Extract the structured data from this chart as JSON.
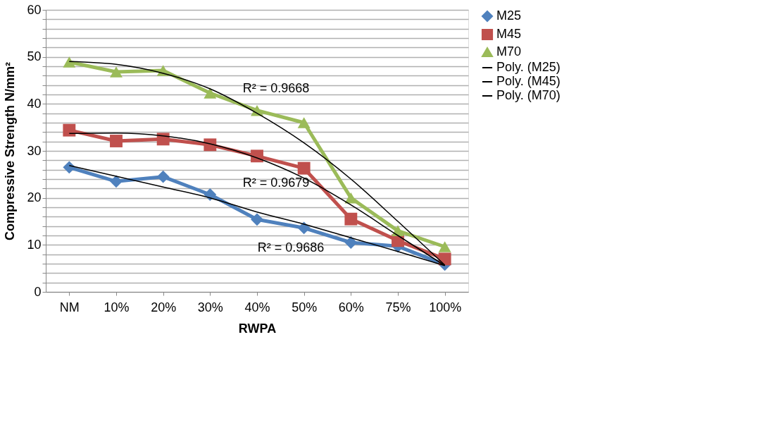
{
  "chart_data": {
    "type": "line",
    "xlabel": "RWPA",
    "ylabel": "Compressive Strength N/mm²",
    "categories": [
      "NM",
      "10%",
      "20%",
      "30%",
      "40%",
      "50%",
      "60%",
      "75%",
      "100%"
    ],
    "series": [
      {
        "name": "M25",
        "color": "#4f81bd",
        "marker": "diamond",
        "values": [
          26.5,
          23.5,
          24.5,
          20.7,
          15.4,
          13.6,
          10.5,
          9.7,
          5.8
        ]
      },
      {
        "name": "M45",
        "color": "#c0504d",
        "marker": "square",
        "values": [
          34.4,
          32.1,
          32.5,
          31.3,
          28.9,
          26.3,
          15.5,
          10.9,
          7.0
        ]
      },
      {
        "name": "M70",
        "color": "#9bbb59",
        "marker": "triangle",
        "values": [
          48.9,
          46.8,
          47.1,
          42.3,
          38.6,
          36.0,
          20.0,
          13.0,
          9.6
        ]
      },
      {
        "name": "Poly. (M25)",
        "color": "#000000",
        "marker": "none",
        "values": [
          26.9,
          24.6,
          22.3,
          20.0,
          17.0,
          14.4,
          11.5,
          8.6,
          5.6
        ]
      },
      {
        "name": "Poly. (M45)",
        "color": "#000000",
        "marker": "none",
        "values": [
          33.7,
          33.8,
          33.2,
          31.5,
          28.5,
          24.2,
          18.5,
          12.0,
          5.6
        ]
      },
      {
        "name": "Poly. (M70)",
        "color": "#000000",
        "marker": "none",
        "values": [
          49.0,
          48.4,
          46.5,
          43.2,
          38.0,
          31.7,
          24.0,
          15.0,
          5.7
        ]
      }
    ],
    "ylim": [
      0,
      60
    ],
    "yticks": [
      0,
      {
        "value": 2,
        "label": null
      },
      {
        "value": 4,
        "label": null
      },
      {
        "value": 6,
        "label": null
      },
      {
        "value": 8,
        "label": null
      },
      10,
      {
        "value": 12,
        "label": null
      },
      {
        "value": 14,
        "label": null
      },
      {
        "value": 16,
        "label": null
      },
      {
        "value": 18,
        "label": null
      },
      20,
      {
        "value": 22,
        "label": null
      },
      {
        "value": 24,
        "label": null
      },
      {
        "value": 26,
        "label": null
      },
      {
        "value": 28,
        "label": null
      },
      30,
      {
        "value": 32,
        "label": null
      },
      {
        "value": 34,
        "label": null
      },
      {
        "value": 36,
        "label": null
      },
      {
        "value": 38,
        "label": null
      },
      40,
      {
        "value": 42,
        "label": null
      },
      {
        "value": 44,
        "label": null
      },
      {
        "value": 46,
        "label": null
      },
      {
        "value": 48,
        "label": null
      },
      50,
      {
        "value": 52,
        "label": null
      },
      {
        "value": 54,
        "label": null
      },
      {
        "value": 56,
        "label": null
      },
      {
        "value": 58,
        "label": null
      },
      60
    ],
    "grid": "y",
    "legend": "right",
    "line_style": "solid",
    "annotations": [
      "R² = 0.9668",
      "R² = 0.9679",
      "R² = 0.9686"
    ]
  }
}
